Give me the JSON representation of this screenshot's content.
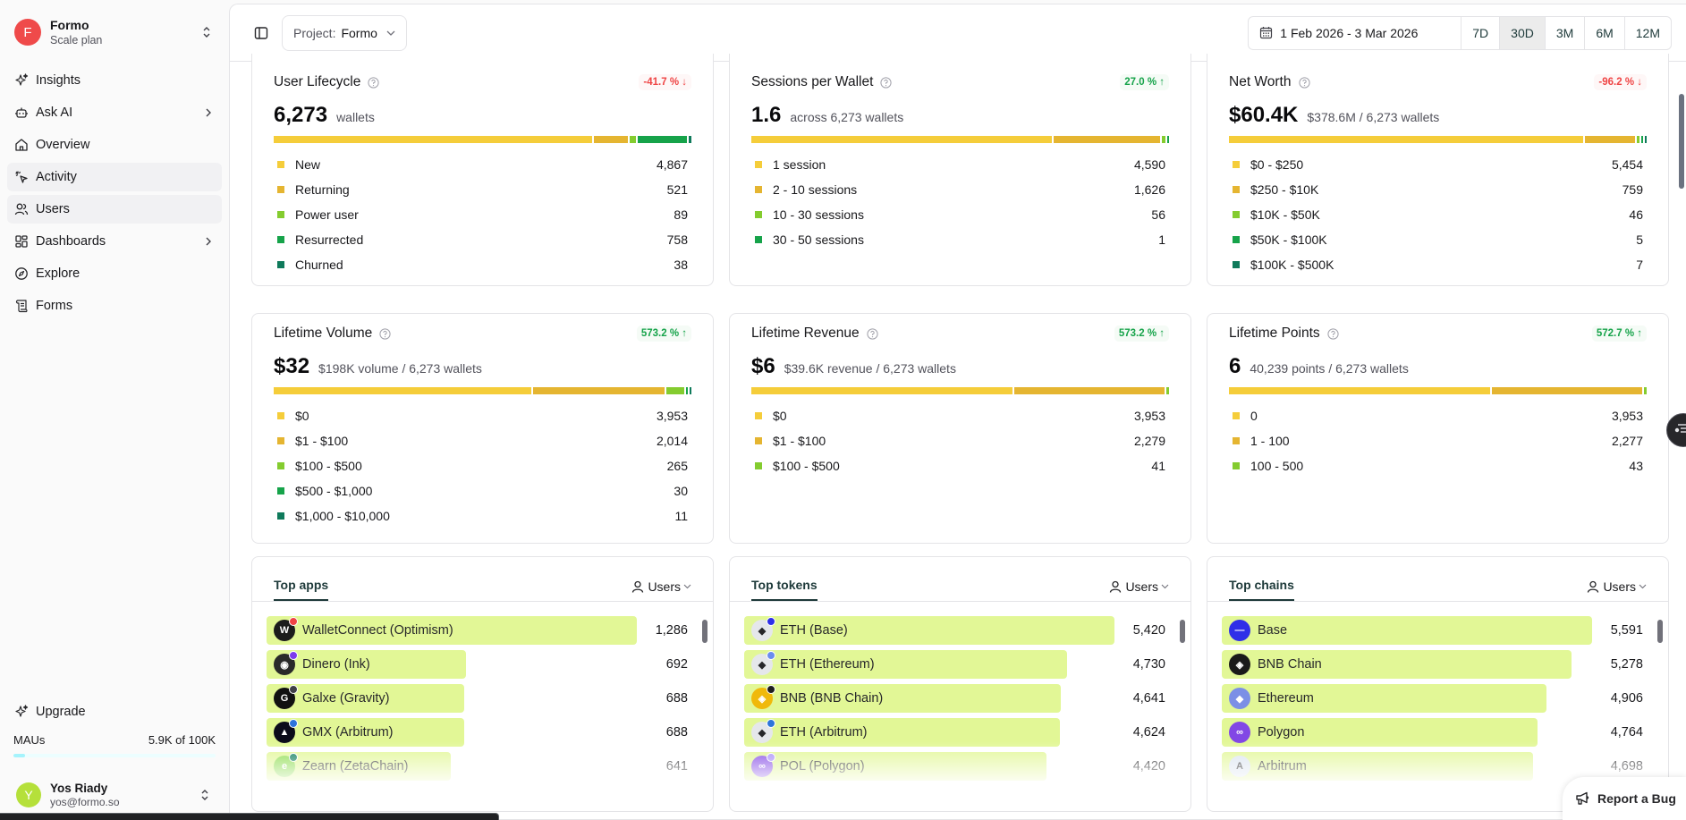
{
  "org": {
    "initial": "F",
    "name": "Formo",
    "plan": "Scale plan"
  },
  "nav": [
    {
      "label": "Insights",
      "icon": "sparkles-icon",
      "chevron": false,
      "active": false
    },
    {
      "label": "Ask AI",
      "icon": "bot-icon",
      "chevron": true,
      "active": false
    },
    {
      "label": "Overview",
      "icon": "home-icon",
      "chevron": false,
      "active": false
    },
    {
      "label": "Activity",
      "icon": "pointer-click-icon",
      "chevron": false,
      "active": true
    },
    {
      "label": "Users",
      "icon": "users-icon",
      "chevron": false,
      "active": true
    },
    {
      "label": "Dashboards",
      "icon": "layout-dashboard-icon",
      "chevron": true,
      "active": false
    },
    {
      "label": "Explore",
      "icon": "compass-icon",
      "chevron": false,
      "active": false
    },
    {
      "label": "Forms",
      "icon": "scroll-icon",
      "chevron": false,
      "active": false
    }
  ],
  "upgrade": {
    "label": "Upgrade"
  },
  "mau": {
    "label": "MAUs",
    "value_text": "5.9K of 100K",
    "used": 5900,
    "limit": 100000
  },
  "user": {
    "initial": "Y",
    "name": "Yos Riady",
    "email": "yos@formo.so"
  },
  "topbar": {
    "project_prefix": "Project:",
    "project_value": "Formo",
    "date_range": "1 Feb 2026 - 3 Mar 2026",
    "ranges": [
      {
        "label": "7D",
        "active": false
      },
      {
        "label": "30D",
        "active": true
      },
      {
        "label": "3M",
        "active": false
      },
      {
        "label": "6M",
        "active": false
      },
      {
        "label": "12M",
        "active": false
      }
    ]
  },
  "colors": {
    "seg": [
      "#f5cd3a",
      "#e5b531",
      "#84cc2f",
      "#16a34a",
      "#0f7a5b"
    ],
    "bar_fill": "#e2f796",
    "delta_up": "#16a34a",
    "delta_down": "#ef4444"
  },
  "stat_cards": [
    {
      "title": "User Lifecycle",
      "delta": "-41.7 % ↓",
      "direction": "down",
      "value": "6,273",
      "sub": "wallets",
      "items": [
        {
          "label": "New",
          "value": "4,867",
          "n": 4867
        },
        {
          "label": "Returning",
          "value": "521",
          "n": 521
        },
        {
          "label": "Power user",
          "value": "89",
          "n": 89
        },
        {
          "label": "Resurrected",
          "value": "758",
          "n": 758
        },
        {
          "label": "Churned",
          "value": "38",
          "n": 38
        }
      ]
    },
    {
      "title": "Sessions per Wallet",
      "delta": "27.0 % ↑",
      "direction": "up",
      "value": "1.6",
      "sub": "across 6,273 wallets",
      "items": [
        {
          "label": "1 session",
          "value": "4,590",
          "n": 4590
        },
        {
          "label": "2 - 10 sessions",
          "value": "1,626",
          "n": 1626
        },
        {
          "label": "10 - 30 sessions",
          "value": "56",
          "n": 56
        },
        {
          "label": "30 - 50 sessions",
          "value": "1",
          "n": 1
        }
      ]
    },
    {
      "title": "Net Worth",
      "delta": "-96.2 % ↓",
      "direction": "down",
      "value": "$60.4K",
      "sub": "$378.6M / 6,273 wallets",
      "items": [
        {
          "label": "$0 - $250",
          "value": "5,454",
          "n": 5454
        },
        {
          "label": "$250 - $10K",
          "value": "759",
          "n": 759
        },
        {
          "label": "$10K - $50K",
          "value": "46",
          "n": 46
        },
        {
          "label": "$50K - $100K",
          "value": "5",
          "n": 5
        },
        {
          "label": "$100K - $500K",
          "value": "7",
          "n": 7
        }
      ]
    },
    {
      "title": "Lifetime Volume",
      "delta": "573.2 % ↑",
      "direction": "up",
      "value": "$32",
      "sub": "$198K volume / 6,273 wallets",
      "items": [
        {
          "label": "$0",
          "value": "3,953",
          "n": 3953
        },
        {
          "label": "$1 - $100",
          "value": "2,014",
          "n": 2014
        },
        {
          "label": "$100 - $500",
          "value": "265",
          "n": 265
        },
        {
          "label": "$500 - $1,000",
          "value": "30",
          "n": 30
        },
        {
          "label": "$1,000 - $10,000",
          "value": "11",
          "n": 11
        }
      ]
    },
    {
      "title": "Lifetime Revenue",
      "delta": "573.2 % ↑",
      "direction": "up",
      "value": "$6",
      "sub": "$39.6K revenue / 6,273 wallets",
      "items": [
        {
          "label": "$0",
          "value": "3,953",
          "n": 3953
        },
        {
          "label": "$1 - $100",
          "value": "2,279",
          "n": 2279
        },
        {
          "label": "$100 - $500",
          "value": "41",
          "n": 41
        }
      ]
    },
    {
      "title": "Lifetime Points",
      "delta": "572.7 % ↑",
      "direction": "up",
      "value": "6",
      "sub": "40,239 points / 6,273 wallets",
      "items": [
        {
          "label": "0",
          "value": "3,953",
          "n": 3953
        },
        {
          "label": "1 - 100",
          "value": "2,277",
          "n": 2277
        },
        {
          "label": "100 - 500",
          "value": "43",
          "n": 43
        }
      ]
    }
  ],
  "lists": [
    {
      "tab": "Top apps",
      "metric": "Users",
      "rows": [
        {
          "name": "WalletConnect (Optimism)",
          "value": "1,286",
          "n": 1286,
          "logo": "#1c1c1c",
          "badge": "#ef4444",
          "glyph": "W"
        },
        {
          "name": "Dinero (Ink)",
          "value": "692",
          "n": 692,
          "logo": "#2a2a2a",
          "badge": "#7c3aed",
          "glyph": "◉"
        },
        {
          "name": "Galxe (Gravity)",
          "value": "688",
          "n": 688,
          "logo": "#111111",
          "badge": "#3f3f46",
          "glyph": "G"
        },
        {
          "name": "GMX (Arbitrum)",
          "value": "688",
          "n": 688,
          "logo": "#0b0b1a",
          "badge": "#2d74da",
          "glyph": "▲"
        },
        {
          "name": "Zearn (ZetaChain)",
          "value": "641",
          "n": 641,
          "logo": "#8bdc4c",
          "badge": "#047857",
          "glyph": "e"
        }
      ]
    },
    {
      "tab": "Top tokens",
      "metric": "Users",
      "rows": [
        {
          "name": "ETH (Base)",
          "value": "5,420",
          "n": 5420,
          "logo": "#e5e7eb",
          "badge": "#2f2fe8",
          "glyph": "◆"
        },
        {
          "name": "ETH (Ethereum)",
          "value": "4,730",
          "n": 4730,
          "logo": "#e5e7eb",
          "badge": "#6b8cef",
          "glyph": "◆"
        },
        {
          "name": "BNB (BNB Chain)",
          "value": "4,641",
          "n": 4641,
          "logo": "#f0b90b",
          "badge": "#1f1f1f",
          "glyph": "◈"
        },
        {
          "name": "ETH (Arbitrum)",
          "value": "4,624",
          "n": 4624,
          "logo": "#e5e7eb",
          "badge": "#2d74da",
          "glyph": "◆"
        },
        {
          "name": "POL (Polygon)",
          "value": "4,420",
          "n": 4420,
          "logo": "#8247e5",
          "badge": "#a78bfa",
          "glyph": "∞"
        }
      ]
    },
    {
      "tab": "Top chains",
      "metric": "Users",
      "rows": [
        {
          "name": "Base",
          "value": "5,591",
          "n": 5591,
          "logo": "#2f2fe8",
          "badge": "",
          "glyph": "—"
        },
        {
          "name": "BNB Chain",
          "value": "5,278",
          "n": 5278,
          "logo": "#1a1a1a",
          "badge": "",
          "glyph": "◈"
        },
        {
          "name": "Ethereum",
          "value": "4,906",
          "n": 4906,
          "logo": "#7b8fe6",
          "badge": "",
          "glyph": "◆"
        },
        {
          "name": "Polygon",
          "value": "4,764",
          "n": 4764,
          "logo": "#8247e5",
          "badge": "",
          "glyph": "∞"
        },
        {
          "name": "Arbitrum",
          "value": "4,698",
          "n": 4698,
          "logo": "#dbe4f0",
          "badge": "",
          "glyph": "A"
        }
      ]
    }
  ],
  "report_bug": {
    "label": "Report a Bug"
  }
}
